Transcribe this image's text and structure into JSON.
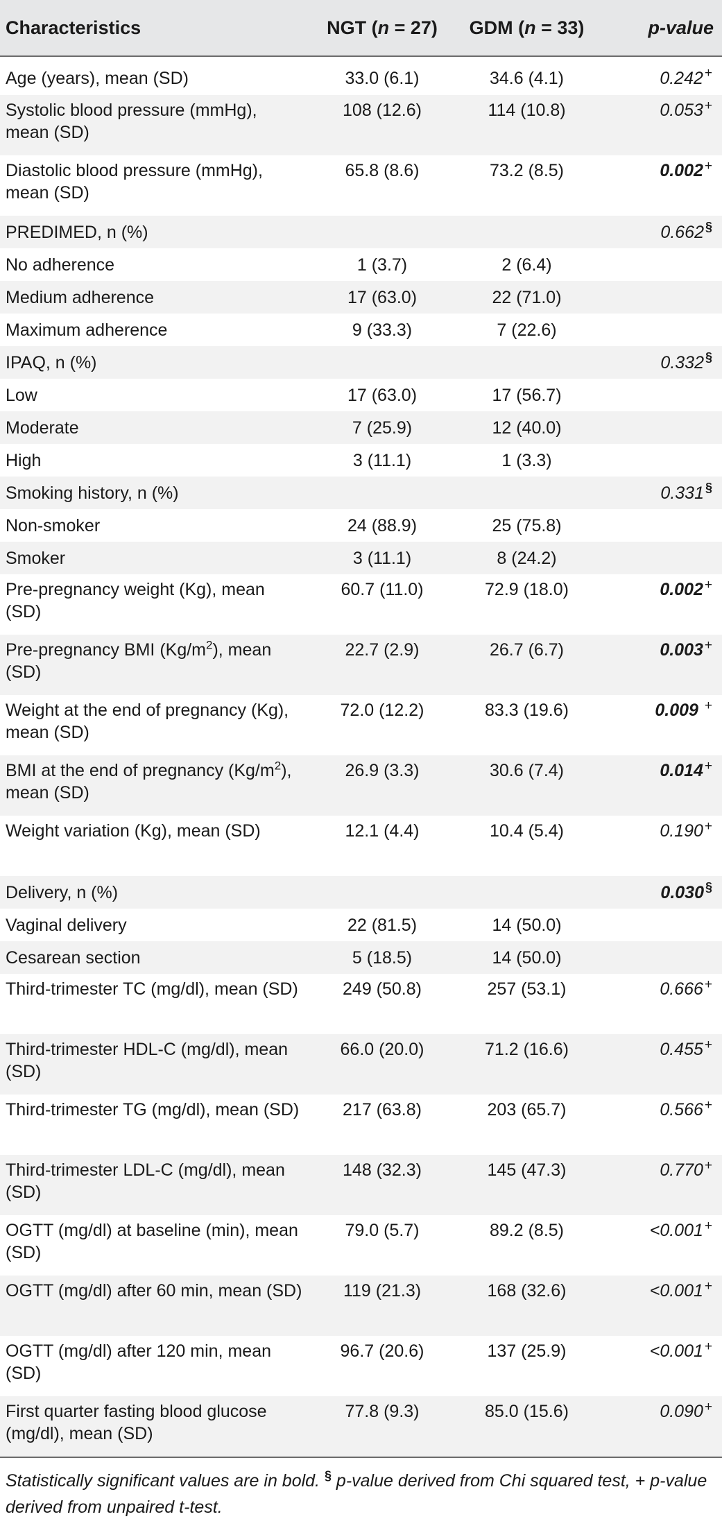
{
  "table": {
    "headers": {
      "characteristics": "Characteristics",
      "ngt_prefix": "NGT (",
      "ngt_n": "n",
      "ngt_suffix": " = 27)",
      "gdm_prefix": "GDM (",
      "gdm_n": "n",
      "gdm_suffix": " = 33)",
      "p_value": "p-value"
    },
    "rows": [
      {
        "label": "Age (years), mean (SD)",
        "label_sup": "",
        "label_tail": "",
        "ngt": "33.0 (6.1)",
        "gdm": "34.6 (4.1)",
        "p": "0.242",
        "mark": "+",
        "sig": false
      },
      {
        "label": "Systolic blood pressure (mmHg), mean (SD)",
        "label_sup": "",
        "label_tail": "",
        "ngt": "108 (12.6)",
        "gdm": "114 (10.8)",
        "p": "0.053",
        "mark": "+",
        "sig": false
      },
      {
        "label": "Diastolic blood pressure (mmHg), mean (SD)",
        "label_sup": "",
        "label_tail": "",
        "ngt": "65.8 (8.6)",
        "gdm": "73.2 (8.5)",
        "p": "0.002",
        "mark": "+",
        "sig": true
      },
      {
        "label": "PREDIMED, n (%)",
        "label_sup": "",
        "label_tail": "",
        "ngt": "",
        "gdm": "",
        "p": "0.662",
        "mark": "§",
        "sig": false
      },
      {
        "label": "No adherence",
        "label_sup": "",
        "label_tail": "",
        "ngt": "1 (3.7)",
        "gdm": "2 (6.4)",
        "p": "",
        "mark": "",
        "sig": false
      },
      {
        "label": "Medium adherence",
        "label_sup": "",
        "label_tail": "",
        "ngt": "17 (63.0)",
        "gdm": "22 (71.0)",
        "p": "",
        "mark": "",
        "sig": false
      },
      {
        "label": "Maximum adherence",
        "label_sup": "",
        "label_tail": "",
        "ngt": "9 (33.3)",
        "gdm": "7 (22.6)",
        "p": "",
        "mark": "",
        "sig": false
      },
      {
        "label": "IPAQ, n (%)",
        "label_sup": "",
        "label_tail": "",
        "ngt": "",
        "gdm": "",
        "p": "0.332",
        "mark": "§",
        "sig": false
      },
      {
        "label": "Low",
        "label_sup": "",
        "label_tail": "",
        "ngt": "17 (63.0)",
        "gdm": "17 (56.7)",
        "p": "",
        "mark": "",
        "sig": false
      },
      {
        "label": "Moderate",
        "label_sup": "",
        "label_tail": "",
        "ngt": "7 (25.9)",
        "gdm": "12 (40.0)",
        "p": "",
        "mark": "",
        "sig": false
      },
      {
        "label": "High",
        "label_sup": "",
        "label_tail": "",
        "ngt": "3 (11.1)",
        "gdm": "1 (3.3)",
        "p": "",
        "mark": "",
        "sig": false
      },
      {
        "label": "Smoking history, n (%)",
        "label_sup": "",
        "label_tail": "",
        "ngt": "",
        "gdm": "",
        "p": "0.331",
        "mark": "§",
        "sig": false
      },
      {
        "label": "Non-smoker",
        "label_sup": "",
        "label_tail": "",
        "ngt": "24 (88.9)",
        "gdm": "25 (75.8)",
        "p": "",
        "mark": "",
        "sig": false
      },
      {
        "label": "Smoker",
        "label_sup": "",
        "label_tail": "",
        "ngt": "3 (11.1)",
        "gdm": "8 (24.2)",
        "p": "",
        "mark": "",
        "sig": false
      },
      {
        "label": "Pre-pregnancy weight (Kg), mean (SD)",
        "label_sup": "",
        "label_tail": "",
        "ngt": "60.7 (11.0)",
        "gdm": "72.9 (18.0)",
        "p": "0.002",
        "mark": "+",
        "sig": true
      },
      {
        "label": "Pre-pregnancy BMI (Kg/m",
        "label_sup": "2",
        "label_tail": "), mean (SD)",
        "ngt": "22.7 (2.9)",
        "gdm": "26.7 (6.7)",
        "p": "0.003",
        "mark": "+",
        "sig": true
      },
      {
        "label": "Weight at the end of pregnancy (Kg), mean (SD)",
        "label_sup": "",
        "label_tail": "",
        "ngt": "72.0 (12.2)",
        "gdm": "83.3 (19.6)",
        "p": "0.009 ",
        "mark": "+",
        "sig": true
      },
      {
        "label": "BMI at the end of pregnancy (Kg/m",
        "label_sup": "2",
        "label_tail": "), mean (SD)",
        "ngt": "26.9 (3.3)",
        "gdm": "30.6 (7.4)",
        "p": "0.014",
        "mark": "+",
        "sig": true
      },
      {
        "label": "Weight variation (Kg), mean (SD)",
        "label_sup": "",
        "label_tail": "",
        "ngt": "12.1 (4.4)",
        "gdm": "10.4 (5.4)",
        "p": "0.190",
        "mark": "+",
        "sig": false
      },
      {
        "label": "Delivery, n (%)",
        "label_sup": "",
        "label_tail": "",
        "ngt": "",
        "gdm": "",
        "p": "0.030",
        "mark": "§",
        "sig": true
      },
      {
        "label": "Vaginal delivery",
        "label_sup": "",
        "label_tail": "",
        "ngt": "22 (81.5)",
        "gdm": "14 (50.0)",
        "p": "",
        "mark": "",
        "sig": false
      },
      {
        "label": "Cesarean section",
        "label_sup": "",
        "label_tail": "",
        "ngt": "5 (18.5)",
        "gdm": "14 (50.0)",
        "p": "",
        "mark": "",
        "sig": false
      },
      {
        "label": "Third-trimester TC (mg/dl), mean (SD)",
        "label_sup": "",
        "label_tail": "",
        "ngt": "249 (50.8)",
        "gdm": "257 (53.1)",
        "p": "0.666",
        "mark": "+",
        "sig": false
      },
      {
        "label": "Third-trimester HDL-C (mg/dl), mean (SD)",
        "label_sup": "",
        "label_tail": "",
        "ngt": "66.0 (20.0)",
        "gdm": "71.2 (16.6)",
        "p": "0.455",
        "mark": "+",
        "sig": false
      },
      {
        "label": "Third-trimester TG (mg/dl), mean (SD)",
        "label_sup": "",
        "label_tail": "",
        "ngt": "217 (63.8)",
        "gdm": "203 (65.7)",
        "p": "0.566",
        "mark": "+",
        "sig": false
      },
      {
        "label": "Third-trimester LDL-C (mg/dl), mean (SD)",
        "label_sup": "",
        "label_tail": "",
        "ngt": "148 (32.3)",
        "gdm": "145 (47.3)",
        "p": "0.770",
        "mark": "+",
        "sig": false
      },
      {
        "label": "OGTT (mg/dl) at baseline (min), mean (SD)",
        "label_sup": "",
        "label_tail": "",
        "ngt": "79.0 (5.7)",
        "gdm": "89.2 (8.5)",
        "p": "<0.001",
        "mark": "+",
        "sig": false
      },
      {
        "label": "OGTT (mg/dl) after 60 min, mean (SD)",
        "label_sup": "",
        "label_tail": "",
        "ngt": "119 (21.3)",
        "gdm": "168 (32.6)",
        "p": "<0.001",
        "mark": "+",
        "sig": false
      },
      {
        "label": "OGTT (mg/dl) after 120 min, mean (SD)",
        "label_sup": "",
        "label_tail": "",
        "ngt": "96.7 (20.6)",
        "gdm": "137 (25.9)",
        "p": "<0.001",
        "mark": "+",
        "sig": false
      },
      {
        "label": "First quarter fasting blood glucose (mg/dl), mean (SD)",
        "label_sup": "",
        "label_tail": "",
        "ngt": "77.8 (9.3)",
        "gdm": "85.0 (15.6)",
        "p": "0.090",
        "mark": "+",
        "sig": false
      }
    ]
  },
  "footnote": {
    "part1": "Statistically significant values are in bold. ",
    "sect_mark": "§",
    "part2": " p-value derived from Chi squared test, + p-value derived from unpaired t-test."
  }
}
